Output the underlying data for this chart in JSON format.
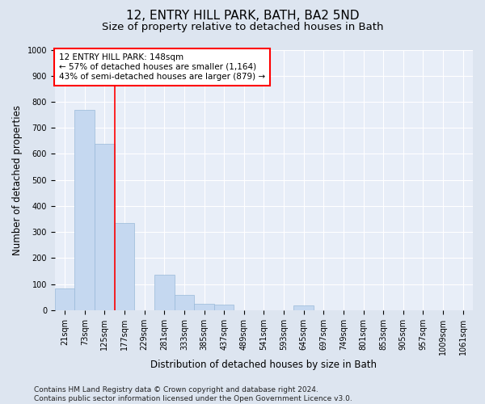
{
  "title": "12, ENTRY HILL PARK, BATH, BA2 5ND",
  "subtitle": "Size of property relative to detached houses in Bath",
  "xlabel": "Distribution of detached houses by size in Bath",
  "ylabel": "Number of detached properties",
  "categories": [
    "21sqm",
    "73sqm",
    "125sqm",
    "177sqm",
    "229sqm",
    "281sqm",
    "333sqm",
    "385sqm",
    "437sqm",
    "489sqm",
    "541sqm",
    "593sqm",
    "645sqm",
    "697sqm",
    "749sqm",
    "801sqm",
    "853sqm",
    "905sqm",
    "957sqm",
    "1009sqm",
    "1061sqm"
  ],
  "values": [
    85,
    770,
    640,
    335,
    0,
    135,
    60,
    25,
    22,
    0,
    0,
    0,
    18,
    0,
    0,
    0,
    0,
    0,
    0,
    0,
    0
  ],
  "bar_color": "#c5d8f0",
  "bar_edge_color": "#99b9d9",
  "vline_x": 2.5,
  "vline_color": "red",
  "annotation_text": "12 ENTRY HILL PARK: 148sqm\n← 57% of detached houses are smaller (1,164)\n43% of semi-detached houses are larger (879) →",
  "annotation_box_facecolor": "white",
  "annotation_box_edgecolor": "red",
  "ylim": [
    0,
    1000
  ],
  "yticks": [
    0,
    100,
    200,
    300,
    400,
    500,
    600,
    700,
    800,
    900,
    1000
  ],
  "footnote": "Contains HM Land Registry data © Crown copyright and database right 2024.\nContains public sector information licensed under the Open Government Licence v3.0.",
  "fig_bg_color": "#dde5f0",
  "plot_bg_color": "#e8eef8",
  "title_fontsize": 11,
  "subtitle_fontsize": 9.5,
  "axis_label_fontsize": 8.5,
  "tick_fontsize": 7,
  "annot_fontsize": 7.5,
  "footnote_fontsize": 6.5
}
